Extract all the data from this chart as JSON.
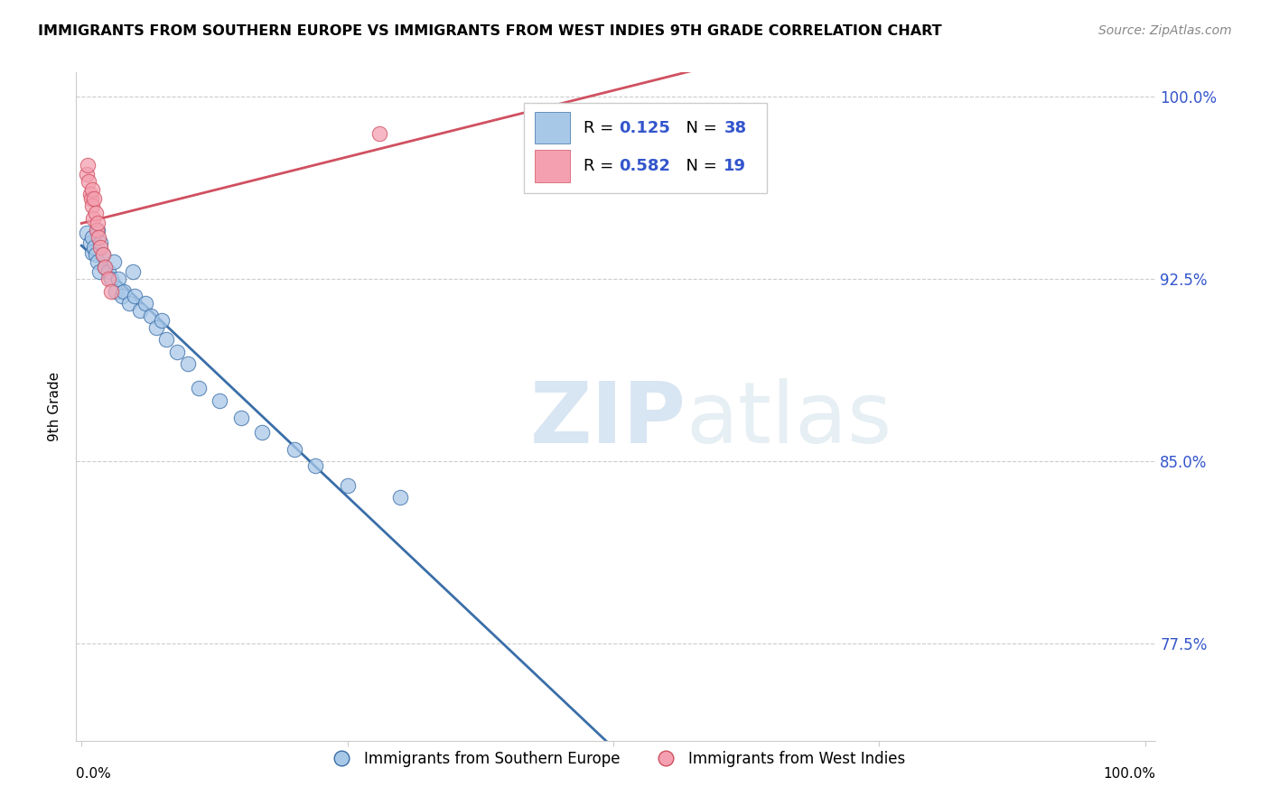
{
  "title": "IMMIGRANTS FROM SOUTHERN EUROPE VS IMMIGRANTS FROM WEST INDIES 9TH GRADE CORRELATION CHART",
  "source": "Source: ZipAtlas.com",
  "ylabel": "9th Grade",
  "legend_blue_r": "0.125",
  "legend_blue_n": "38",
  "legend_pink_r": "0.582",
  "legend_pink_n": "19",
  "legend_blue_label": "Immigrants from Southern Europe",
  "legend_pink_label": "Immigrants from West Indies",
  "blue_color": "#a8c8e8",
  "pink_color": "#f4a0b0",
  "blue_line_color": "#3a6ea8",
  "pink_line_color": "#d05060",
  "accent_color": "#3355cc",
  "blue_x": [
    0.005,
    0.008,
    0.01,
    0.01,
    0.012,
    0.013,
    0.015,
    0.015,
    0.017,
    0.018,
    0.02,
    0.022,
    0.025,
    0.028,
    0.03,
    0.032,
    0.035,
    0.038,
    0.04,
    0.045,
    0.048,
    0.05,
    0.055,
    0.06,
    0.065,
    0.07,
    0.075,
    0.08,
    0.09,
    0.1,
    0.11,
    0.13,
    0.15,
    0.17,
    0.2,
    0.22,
    0.25,
    0.3
  ],
  "blue_y": [
    0.944,
    0.94,
    0.936,
    0.942,
    0.938,
    0.935,
    0.932,
    0.945,
    0.928,
    0.94,
    0.935,
    0.93,
    0.928,
    0.925,
    0.932,
    0.92,
    0.925,
    0.918,
    0.92,
    0.915,
    0.928,
    0.918,
    0.912,
    0.915,
    0.91,
    0.905,
    0.908,
    0.9,
    0.895,
    0.89,
    0.88,
    0.875,
    0.868,
    0.862,
    0.855,
    0.848,
    0.84,
    0.835
  ],
  "pink_x": [
    0.005,
    0.006,
    0.007,
    0.008,
    0.009,
    0.01,
    0.01,
    0.011,
    0.012,
    0.013,
    0.014,
    0.015,
    0.016,
    0.018,
    0.02,
    0.022,
    0.025,
    0.028,
    0.28
  ],
  "pink_y": [
    0.968,
    0.972,
    0.965,
    0.96,
    0.958,
    0.962,
    0.955,
    0.95,
    0.958,
    0.952,
    0.945,
    0.948,
    0.942,
    0.938,
    0.935,
    0.93,
    0.925,
    0.92,
    0.985
  ],
  "watermark_zip": "ZIP",
  "watermark_atlas": "atlas",
  "ylim_min": 0.735,
  "ylim_max": 1.01,
  "xlim_min": -0.005,
  "xlim_max": 1.01,
  "yticks": [
    0.775,
    0.85,
    0.925,
    1.0
  ],
  "ytick_labels": [
    "77.5%",
    "85.0%",
    "92.5%",
    "100.0%"
  ]
}
